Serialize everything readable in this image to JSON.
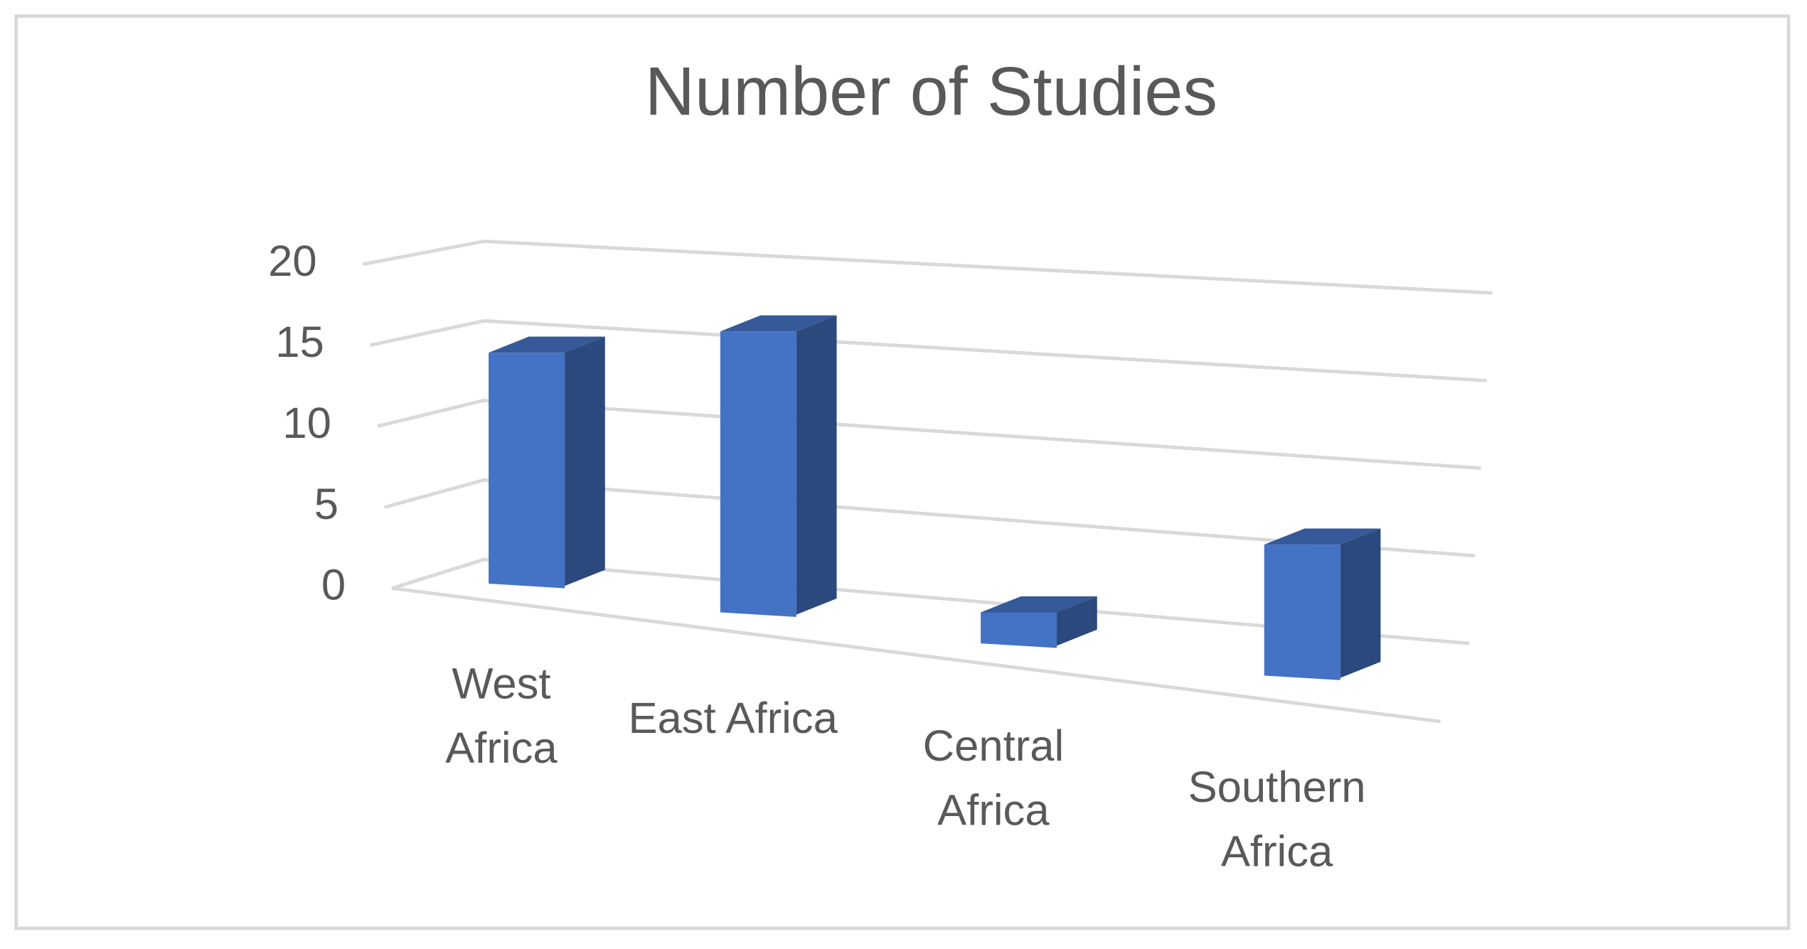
{
  "chart_data": {
    "type": "bar3d",
    "title": "Number of Studies",
    "categories": [
      "West Africa",
      "East Africa",
      "Central Africa",
      "Southern Africa"
    ],
    "values": [
      14,
      17,
      2,
      8
    ],
    "color": "#4472c4",
    "ylim": [
      0,
      20
    ],
    "yticks": [
      0,
      5,
      10,
      15,
      20
    ],
    "grid": true
  }
}
